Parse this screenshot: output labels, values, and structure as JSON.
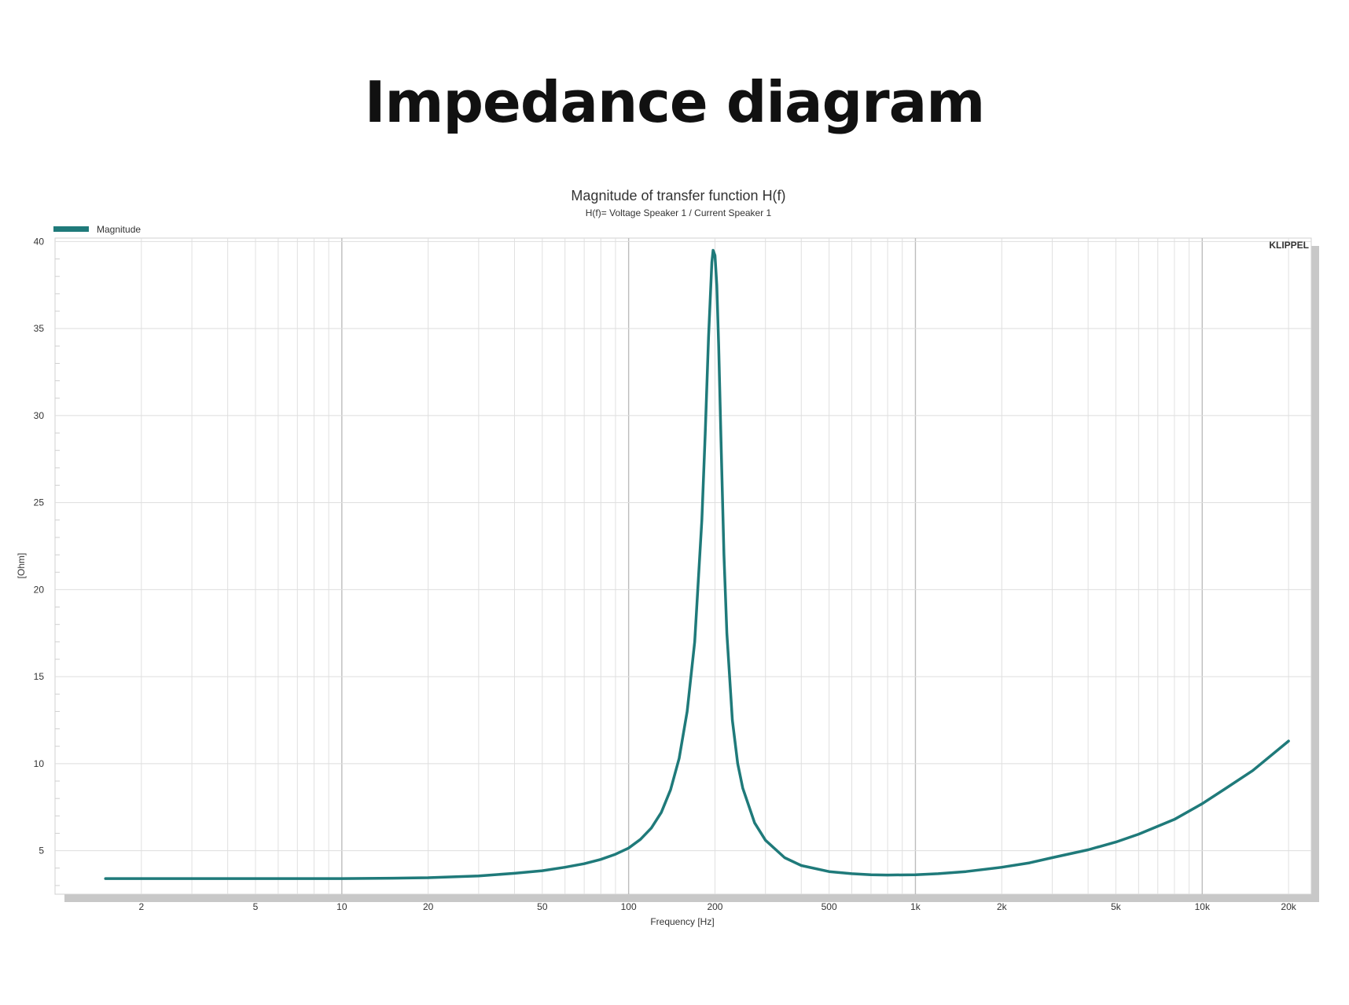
{
  "page": {
    "heading": "Impedance diagram"
  },
  "chart_data": {
    "type": "line",
    "title": "Magnitude of transfer function H(f)",
    "subtitle": "H(f)= Voltage Speaker 1 / Current Speaker 1",
    "brand": "KLIPPEL",
    "xlabel": "Frequency [Hz]",
    "ylabel": "[Ohm]",
    "x_scale": "log",
    "xlim": [
      1,
      24000
    ],
    "ylim": [
      2.5,
      40.2
    ],
    "x_ticks": [
      {
        "value": 2,
        "label": "2"
      },
      {
        "value": 5,
        "label": "5"
      },
      {
        "value": 10,
        "label": "10"
      },
      {
        "value": 20,
        "label": "20"
      },
      {
        "value": 50,
        "label": "50"
      },
      {
        "value": 100,
        "label": "100"
      },
      {
        "value": 200,
        "label": "200"
      },
      {
        "value": 500,
        "label": "500"
      },
      {
        "value": 1000,
        "label": "1k"
      },
      {
        "value": 2000,
        "label": "2k"
      },
      {
        "value": 5000,
        "label": "5k"
      },
      {
        "value": 10000,
        "label": "10k"
      },
      {
        "value": 20000,
        "label": "20k"
      }
    ],
    "y_ticks": [
      {
        "value": 5,
        "label": "5"
      },
      {
        "value": 10,
        "label": "10"
      },
      {
        "value": 15,
        "label": "15"
      },
      {
        "value": 20,
        "label": "20"
      },
      {
        "value": 25,
        "label": "25"
      },
      {
        "value": 30,
        "label": "30"
      },
      {
        "value": 35,
        "label": "35"
      },
      {
        "value": 40,
        "label": "40"
      }
    ],
    "grid": true,
    "legend_position": "top-left",
    "series": [
      {
        "name": "Magnitude",
        "color": "#1f7a7a",
        "x": [
          1.5,
          3,
          10,
          15,
          20,
          30,
          40,
          50,
          60,
          70,
          80,
          90,
          100,
          110,
          120,
          130,
          140,
          150,
          160,
          170,
          180,
          185,
          190,
          195,
          197,
          200,
          203,
          206,
          210,
          215,
          220,
          230,
          240,
          250,
          275,
          300,
          350,
          400,
          500,
          600,
          700,
          800,
          1000,
          1200,
          1500,
          2000,
          2500,
          3000,
          4000,
          5000,
          6000,
          8000,
          10000,
          12000,
          15000,
          20000
        ],
        "y": [
          3.4,
          3.4,
          3.4,
          3.42,
          3.45,
          3.55,
          3.7,
          3.85,
          4.05,
          4.25,
          4.5,
          4.8,
          5.15,
          5.65,
          6.3,
          7.2,
          8.5,
          10.3,
          13.0,
          17.0,
          24.0,
          29.0,
          34.5,
          38.8,
          39.5,
          39.2,
          37.5,
          34.0,
          28.5,
          22.0,
          17.5,
          12.5,
          10.0,
          8.6,
          6.6,
          5.6,
          4.6,
          4.15,
          3.8,
          3.68,
          3.62,
          3.6,
          3.62,
          3.68,
          3.8,
          4.05,
          4.3,
          4.6,
          5.05,
          5.5,
          5.95,
          6.8,
          7.7,
          8.55,
          9.6,
          11.3
        ]
      }
    ]
  }
}
